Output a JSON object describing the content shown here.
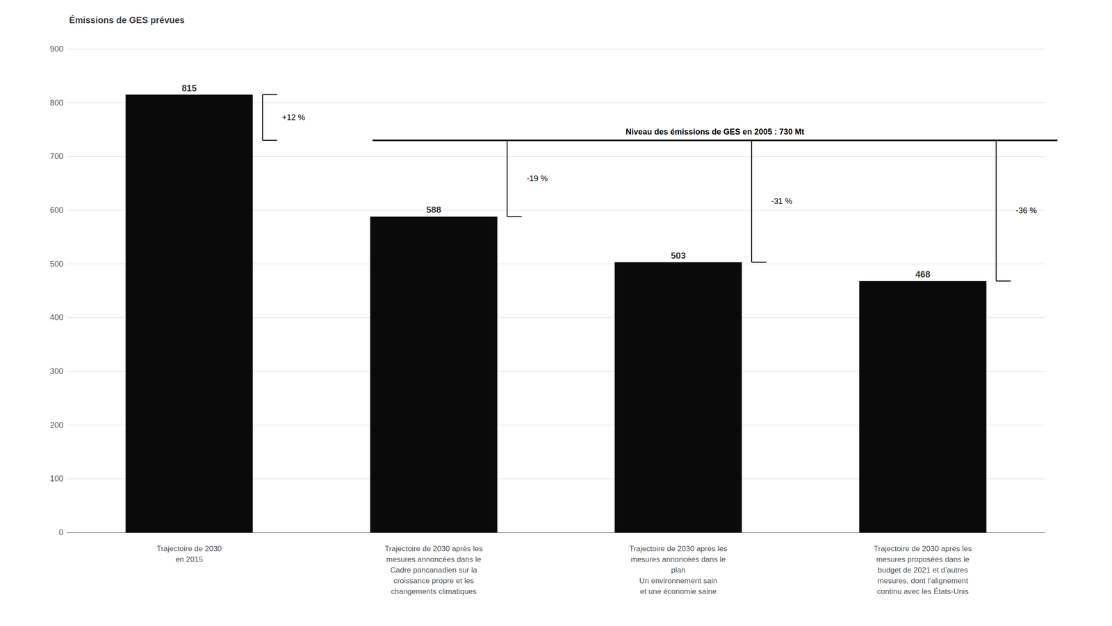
{
  "chart_data": {
    "type": "bar",
    "title": "Émissions de GES prévues",
    "categories": [
      "Trajectoire de 2030\nen 2015",
      "Trajectoire de 2030 après les\nmesures annoncées dans le\nCadre pancanadien sur la\ncroissance propre et les\nchangements climatiques",
      "Trajectoire de 2030 après les\nmesures annoncées dans le\nplan\nUn environnement sain\net une économie saine",
      "Trajectoire de 2030 après les\nmesures proposées dans le\nbudget de 2021 et d’autres\nmesures, dont l’alignement\ncontinu avec les États-Unis"
    ],
    "values": [
      815,
      588,
      503,
      468
    ],
    "color": "#0a0a0a",
    "reference_line": 730,
    "reference_label": "Niveau des émissions de GES en 2005 : 730 Mt",
    "percent_labels": [
      "+12 %",
      "-19 %",
      "-31 %",
      "-36 %"
    ],
    "ylim": [
      0,
      900
    ],
    "yticks": [
      0,
      100,
      200,
      300,
      400,
      500,
      600,
      700,
      800,
      900
    ],
    "grid": true,
    "data_labels": true
  }
}
